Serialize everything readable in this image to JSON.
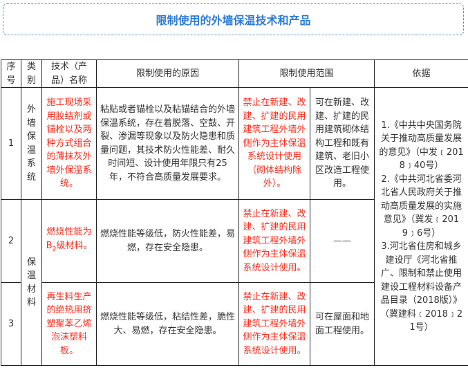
{
  "title": "限制使用的外墙保温技术和产品",
  "headers": {
    "seq": "序号",
    "category": "类别",
    "tech": "技术（产品）名称",
    "reason": "限制使用的原因",
    "scope": "限制使用范围",
    "basis": "依据"
  },
  "categories": [
    "外墙保温系统",
    "保温材料"
  ],
  "rows": [
    {
      "seq": "1",
      "tech": "施工现场采用胶结剂或锚栓以及两种方式组合的薄抹灰外墙外保温系统。",
      "reason": "粘贴或者锚栓以及粘锚结合的外墙保温系统，存在着脱落、空鼓、开裂、渗漏等现象以及防火隐患和质量问题，其技术防火性能差、耐久时间短、设计使用年限只有25年，不符合高质量发展要求。",
      "scope_prohibit": "禁止在新建、改建、扩建的民用建筑工程外墙外侧作为主体保温系统设计使用（砌体结构除外）。",
      "scope_allow": "可在新建、改建、扩建的民用建筑砌体结构工程和既有建筑、老旧小区改造工程使用。"
    },
    {
      "seq": "2",
      "tech_pre": "燃烧性能为B",
      "tech_sub": "2",
      "tech_post": "级材料。",
      "reason": "燃烧性能等级低，防火性能差，易燃，存在安全隐患。",
      "scope_prohibit": "禁止在新建、改建、扩建的民用建筑工程外墙外侧作为主体保温系统设计使用。",
      "scope_allow": "——"
    },
    {
      "seq": "3",
      "tech": "再生料生产的绝热用挤塑聚苯乙烯泡沫塑料板。",
      "reason": "燃烧性能等级低，粘结性差，脆性大、易燃，存在安全隐患。",
      "scope_prohibit": "禁止在新建、改建、扩建的民用建筑工程外墙外侧作为主体保温系统设计使用。",
      "scope_allow": "可在屋面和地面工程使用。"
    }
  ],
  "basis": [
    "1.《中共中央国务院关于推动高质量发展的意见》（中发﹝2018﹞40号）",
    "2.《中共河北省委河北省人民政府关于推动高质量发展的实施意见》（冀发﹝2019﹞6号）",
    "3.河北省住房和城乡建设厅《河北省推广、限制和禁止使用建设工程材料设备产品目录（2018版）》（冀建科﹝2018﹞21号）"
  ],
  "colors": {
    "title": "#2e7bd6",
    "prohibited_text": "#ff2a1a",
    "border": "#222222"
  }
}
